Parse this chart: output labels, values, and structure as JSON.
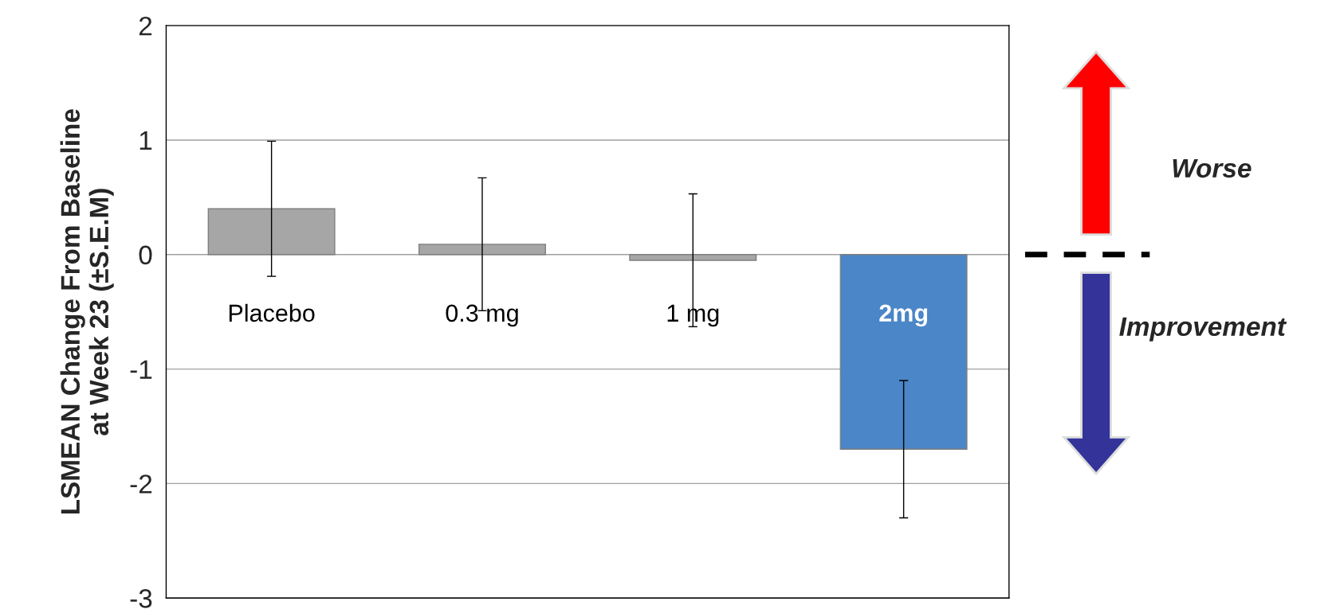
{
  "chart_data": {
    "type": "bar",
    "ylabel": "LSMEAN Change From Baseline\nat Week 23 (±S.E.M)",
    "categories": [
      "Placebo",
      "0.3 mg",
      "1 mg",
      "2mg"
    ],
    "values": [
      0.4,
      0.09,
      -0.05,
      -1.7
    ],
    "errors": [
      0.59,
      0.58,
      0.58,
      0.6
    ],
    "colors": [
      "#a6a6a6",
      "#a6a6a6",
      "#a6a6a6",
      "#4a86c8"
    ],
    "ylim": [
      -3,
      2
    ],
    "yticks": [
      -3,
      -2,
      -1,
      0,
      1,
      2
    ],
    "grid": "y",
    "annotations": [
      "Worse",
      "Improvement"
    ]
  }
}
